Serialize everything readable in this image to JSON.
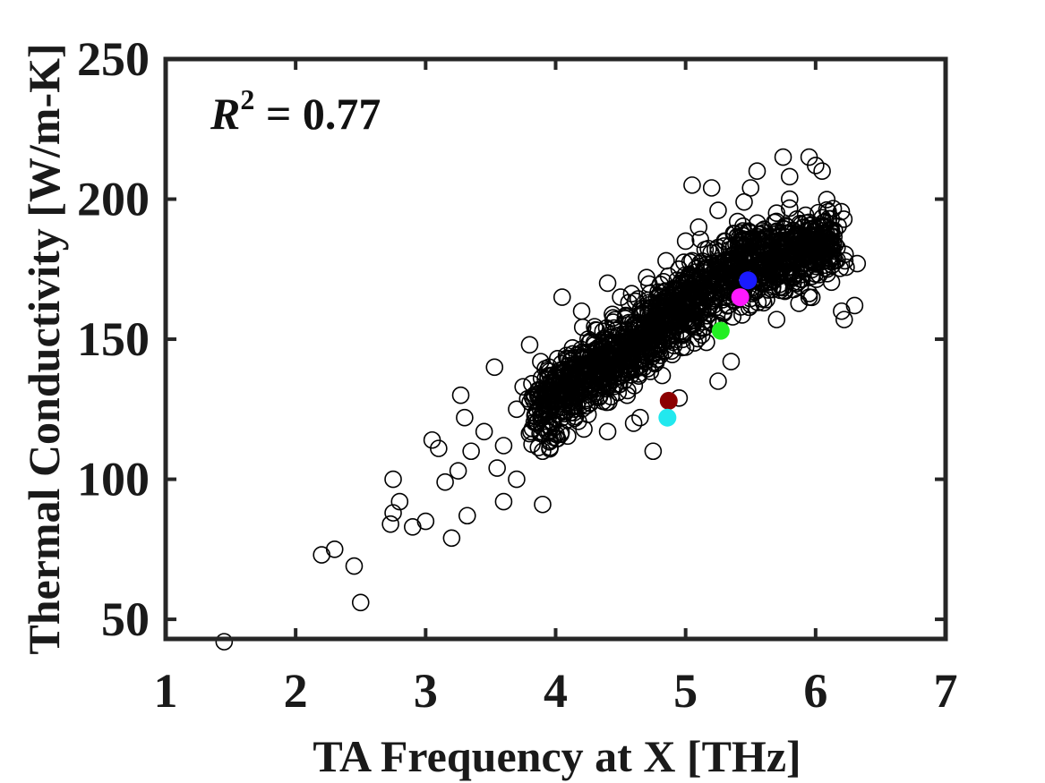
{
  "chart_data": {
    "type": "scatter",
    "title": "",
    "xlabel": "TA Frequency at X [THz]",
    "ylabel": "Thermal Conductivity [W/m-K]",
    "xlim": [
      1,
      7
    ],
    "ylim": [
      43,
      250
    ],
    "xticks": [
      "1",
      "2",
      "3",
      "4",
      "5",
      "6",
      "7"
    ],
    "yticks": [
      "50",
      "100",
      "150",
      "200",
      "250"
    ],
    "grid": false,
    "annotation": {
      "symbol": "R",
      "exponent": "2",
      "text": " = 0.77"
    },
    "series": [
      {
        "name": "dataset",
        "marker": "open-circle",
        "color": "#000000",
        "points": [
          [
            1.45,
            42
          ],
          [
            2.2,
            73
          ],
          [
            2.3,
            75
          ],
          [
            2.45,
            69
          ],
          [
            2.5,
            56
          ],
          [
            2.73,
            84
          ],
          [
            2.75,
            88
          ],
          [
            2.75,
            100
          ],
          [
            2.8,
            92
          ],
          [
            2.9,
            83
          ],
          [
            3.0,
            85
          ],
          [
            3.05,
            114
          ],
          [
            3.1,
            111
          ],
          [
            3.2,
            79
          ],
          [
            3.25,
            103
          ],
          [
            3.27,
            130
          ],
          [
            3.3,
            122
          ],
          [
            3.32,
            87
          ],
          [
            3.53,
            140
          ],
          [
            3.6,
            92
          ],
          [
            3.7,
            100
          ],
          [
            3.8,
            148
          ],
          [
            3.9,
            91
          ],
          [
            4.05,
            165
          ],
          [
            4.2,
            160
          ],
          [
            4.4,
            117
          ],
          [
            4.6,
            120
          ],
          [
            4.65,
            122
          ],
          [
            4.75,
            110
          ],
          [
            5.05,
            205
          ],
          [
            5.2,
            204
          ],
          [
            5.35,
            142
          ],
          [
            5.5,
            204
          ],
          [
            5.55,
            210
          ],
          [
            5.62,
            172
          ],
          [
            5.75,
            215
          ],
          [
            5.8,
            208
          ],
          [
            5.95,
            215
          ],
          [
            6.0,
            212
          ],
          [
            6.05,
            210
          ],
          [
            6.1,
            193
          ],
          [
            6.12,
            188
          ],
          [
            6.15,
            178
          ],
          [
            6.2,
            160
          ],
          [
            6.22,
            157
          ],
          [
            6.3,
            162
          ],
          [
            6.32,
            177
          ],
          [
            5.95,
            165
          ],
          [
            5.7,
            157
          ],
          [
            5.6,
            163
          ],
          [
            5.25,
            135
          ],
          [
            4.95,
            129
          ],
          [
            3.6,
            112
          ],
          [
            3.45,
            117
          ],
          [
            3.15,
            99
          ],
          [
            3.35,
            110
          ],
          [
            3.7,
            125
          ],
          [
            3.9,
            110
          ],
          [
            3.55,
            104
          ],
          [
            4.15,
            130
          ],
          [
            3.75,
            133
          ],
          [
            3.95,
            140
          ],
          [
            4.25,
            150
          ],
          [
            4.45,
            154
          ],
          [
            4.55,
            145
          ],
          [
            4.65,
            160
          ],
          [
            4.7,
            172
          ],
          [
            4.85,
            178
          ],
          [
            4.9,
            168
          ],
          [
            5.0,
            185
          ],
          [
            5.1,
            190
          ],
          [
            5.15,
            182
          ],
          [
            5.25,
            196
          ],
          [
            5.3,
            185
          ],
          [
            5.4,
            192
          ],
          [
            5.45,
            199
          ],
          [
            5.6,
            188
          ],
          [
            5.7,
            195
          ],
          [
            5.85,
            186
          ],
          [
            5.9,
            180
          ],
          [
            5.8,
            200
          ],
          [
            4.35,
            142
          ],
          [
            4.1,
            135
          ],
          [
            4.0,
            125
          ],
          [
            3.85,
            120
          ],
          [
            4.5,
            165
          ],
          [
            4.8,
            162
          ],
          [
            4.95,
            175
          ],
          [
            5.05,
            178
          ],
          [
            5.2,
            170
          ],
          [
            4.3,
            148
          ],
          [
            4.6,
            155
          ],
          [
            4.75,
            150
          ],
          [
            3.95,
            117
          ],
          [
            4.05,
            122
          ],
          [
            4.4,
            170
          ],
          [
            4.55,
            130
          ],
          [
            5.35,
            178
          ],
          [
            5.5,
            183
          ],
          [
            5.65,
            180
          ]
        ]
      },
      {
        "name": "highlight-blue",
        "marker": "filled-circle",
        "color": "#1a1aff",
        "points": [
          [
            5.48,
            171
          ]
        ]
      },
      {
        "name": "highlight-magenta",
        "marker": "filled-circle",
        "color": "#ff19ff",
        "points": [
          [
            5.42,
            165
          ]
        ]
      },
      {
        "name": "highlight-green",
        "marker": "filled-circle",
        "color": "#22ee22",
        "points": [
          [
            5.27,
            153
          ]
        ]
      },
      {
        "name": "highlight-darkred",
        "marker": "filled-circle",
        "color": "#8c0000",
        "points": [
          [
            4.87,
            128
          ]
        ]
      },
      {
        "name": "highlight-cyan",
        "marker": "filled-circle",
        "color": "#22e8ee",
        "points": [
          [
            4.86,
            122
          ]
        ]
      }
    ]
  }
}
